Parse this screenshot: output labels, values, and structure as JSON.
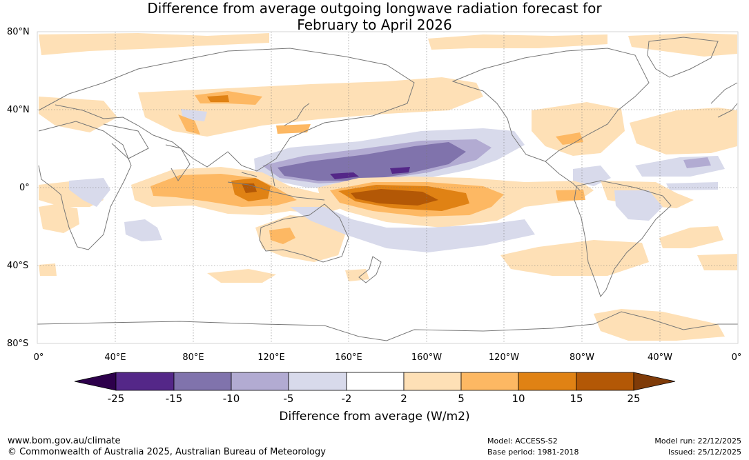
{
  "title": {
    "line1": "Difference from average outgoing longwave radiation forecast for",
    "line2": "February to April 2026"
  },
  "map": {
    "lat_labels": [
      "80°N",
      "40°N",
      "0°",
      "40°S",
      "80°S"
    ],
    "lon_labels": [
      "0°",
      "40°E",
      "80°E",
      "120°E",
      "160°E",
      "160°W",
      "120°W",
      "80°W",
      "40°W",
      "0°"
    ]
  },
  "colorbar": {
    "title": "Difference from average (W/m2)",
    "ticks": [
      "-25",
      "-15",
      "-10",
      "-5",
      "-2",
      "2",
      "5",
      "10",
      "15",
      "25"
    ],
    "colors": {
      "under": "#2d004b",
      "c1": "#542788",
      "c2": "#8073ac",
      "c3": "#b2abd2",
      "c4": "#d8daeb",
      "neutral": "#ffffff",
      "c5": "#fee0b6",
      "c6": "#fdb863",
      "c7": "#e08214",
      "c8": "#b35806",
      "over": "#7f3b08"
    }
  },
  "footer": {
    "website": "www.bom.gov.au/climate",
    "copyright": "© Commonwealth of Australia 2025, Australian Bureau of Meteorology",
    "model": "Model: ACCESS-S2",
    "base_period": "Base period: 1981-2018",
    "model_run": "Model run: 22/12/2025",
    "issued": "Issued: 25/12/2025"
  }
}
